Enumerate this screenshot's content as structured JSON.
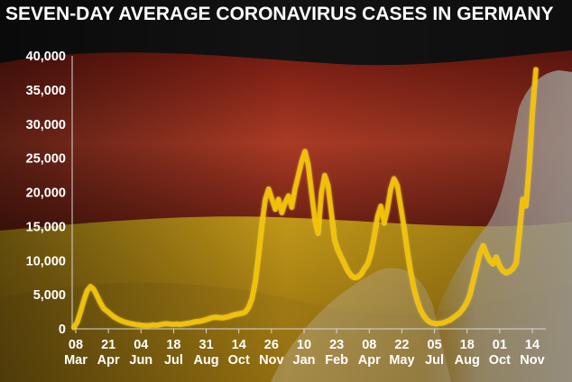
{
  "title": "SEVEN-DAY AVERAGE CORONAVIRUS CASES IN GERMANY",
  "colors": {
    "line": "#f2c200",
    "line_glow": "#fff0a0",
    "flag_black": "#1b1b1b",
    "flag_red": "#c0392b",
    "flag_gold": "#e0b21c",
    "text": "#ffffff",
    "axis": "#d8d8d8"
  },
  "chart_data": {
    "type": "line",
    "title": "SEVEN-DAY AVERAGE CORONAVIRUS CASES IN GERMANY",
    "xlabel": "",
    "ylabel": "",
    "ylim": [
      0,
      40000
    ],
    "yticks": [
      "0",
      "5,000",
      "10,000",
      "15,000",
      "20,000",
      "25,000",
      "30,000",
      "35,000",
      "40,000"
    ],
    "grid": false,
    "x_tick_labels": [
      [
        "08",
        "Mar"
      ],
      [
        "21",
        "Apr"
      ],
      [
        "04",
        "Jun"
      ],
      [
        "18",
        "Jul"
      ],
      [
        "31",
        "Aug"
      ],
      [
        "14",
        "Oct"
      ],
      [
        "26",
        "Nov"
      ],
      [
        "10",
        "Jan"
      ],
      [
        "23",
        "Feb"
      ],
      [
        "08",
        "Apr"
      ],
      [
        "22",
        "May"
      ],
      [
        "05",
        "Jul"
      ],
      [
        "18",
        "Aug"
      ],
      [
        "01",
        "Oct"
      ],
      [
        "14",
        "Nov"
      ]
    ],
    "series": [
      {
        "values": [
          200,
          1000,
          2500,
          4200,
          5600,
          6200,
          5800,
          4800,
          3800,
          3000,
          2600,
          2200,
          1800,
          1500,
          1250,
          1050,
          900,
          800,
          700,
          600,
          550,
          500,
          480,
          500,
          550,
          520,
          600,
          700,
          750,
          700,
          650,
          700,
          650,
          700,
          780,
          850,
          950,
          1050,
          1100,
          1200,
          1350,
          1500,
          1650,
          1700,
          1650,
          1600,
          1700,
          1800,
          2000,
          2100,
          2200,
          2300,
          2500,
          3200,
          4500,
          7000,
          11000,
          15500,
          19000,
          20500,
          19000,
          17500,
          19000,
          17000,
          18500,
          19500,
          17800,
          20500,
          22500,
          24500,
          26000,
          24000,
          20000,
          16000,
          14000,
          20000,
          22500,
          21000,
          17000,
          13000,
          11500,
          10500,
          9500,
          8500,
          7800,
          7500,
          7600,
          8000,
          8800,
          9500,
          11000,
          13500,
          16500,
          18000,
          15500,
          17500,
          20500,
          22000,
          21000,
          18000,
          15000,
          11500,
          8500,
          6000,
          4200,
          2800,
          1900,
          1300,
          950,
          800,
          750,
          800,
          900,
          1100,
          1300,
          1650,
          2000,
          2400,
          3000,
          3800,
          5000,
          7000,
          9000,
          11000,
          12200,
          11000,
          10000,
          9500,
          10500,
          9200,
          8500,
          8200,
          8400,
          8800,
          9600,
          14000,
          19000,
          18000,
          24000,
          32000,
          38000
        ]
      }
    ]
  },
  "axis_geometry": {}
}
